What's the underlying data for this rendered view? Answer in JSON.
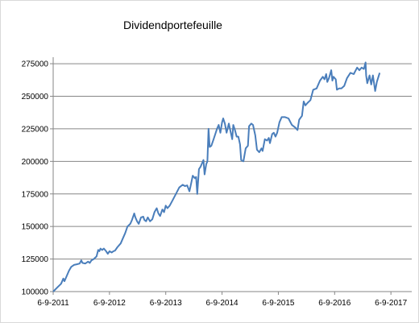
{
  "chart_data": {
    "type": "line",
    "title": "Dividendportefeuille",
    "xlabel": "",
    "ylabel": "",
    "x_tick_labels": [
      "6-9-2011",
      "6-9-2012",
      "6-9-2013",
      "6-9-2014",
      "6-9-2015",
      "6-9-2016",
      "6-9-2017"
    ],
    "x_range_years": [
      2011.68,
      2018.05
    ],
    "y_tick_labels": [
      "100000",
      "125000",
      "150000",
      "175000",
      "200000",
      "225000",
      "250000",
      "275000"
    ],
    "ylim": [
      100000,
      280000
    ],
    "grid": "horizontal",
    "legend": "none",
    "line_color": "#4a7ebb",
    "series": [
      {
        "name": "",
        "points": [
          [
            2011.68,
            100000
          ],
          [
            2011.75,
            103000
          ],
          [
            2011.82,
            106000
          ],
          [
            2011.86,
            110000
          ],
          [
            2011.88,
            108000
          ],
          [
            2011.92,
            112000
          ],
          [
            2011.96,
            116000
          ],
          [
            2012.0,
            119000
          ],
          [
            2012.05,
            120500
          ],
          [
            2012.1,
            121000
          ],
          [
            2012.15,
            121500
          ],
          [
            2012.18,
            124000
          ],
          [
            2012.2,
            122000
          ],
          [
            2012.25,
            121500
          ],
          [
            2012.3,
            123000
          ],
          [
            2012.33,
            122000
          ],
          [
            2012.36,
            124000
          ],
          [
            2012.4,
            125000
          ],
          [
            2012.45,
            127000
          ],
          [
            2012.48,
            132000
          ],
          [
            2012.5,
            131000
          ],
          [
            2012.52,
            133000
          ],
          [
            2012.55,
            132000
          ],
          [
            2012.58,
            133000
          ],
          [
            2012.62,
            131000
          ],
          [
            2012.65,
            129000
          ],
          [
            2012.68,
            131000
          ],
          [
            2012.72,
            130000
          ],
          [
            2012.75,
            131000
          ],
          [
            2012.78,
            131500
          ],
          [
            2012.82,
            134000
          ],
          [
            2012.88,
            137000
          ],
          [
            2012.92,
            141000
          ],
          [
            2012.96,
            145000
          ],
          [
            2013.0,
            150000
          ],
          [
            2013.05,
            152000
          ],
          [
            2013.08,
            155000
          ],
          [
            2013.12,
            160000
          ],
          [
            2013.14,
            157000
          ],
          [
            2013.17,
            154000
          ],
          [
            2013.2,
            152000
          ],
          [
            2013.24,
            157000
          ],
          [
            2013.28,
            157500
          ],
          [
            2013.3,
            155000
          ],
          [
            2013.33,
            154000
          ],
          [
            2013.36,
            157000
          ],
          [
            2013.4,
            154000
          ],
          [
            2013.44,
            155500
          ],
          [
            2013.48,
            161000
          ],
          [
            2013.52,
            164000
          ],
          [
            2013.55,
            160000
          ],
          [
            2013.58,
            158000
          ],
          [
            2013.62,
            163000
          ],
          [
            2013.65,
            161000
          ],
          [
            2013.68,
            166000
          ],
          [
            2013.71,
            164000
          ],
          [
            2013.75,
            166000
          ],
          [
            2013.8,
            170000
          ],
          [
            2013.86,
            175000
          ],
          [
            2013.92,
            180000
          ],
          [
            2013.98,
            182000
          ],
          [
            2014.02,
            181000
          ],
          [
            2014.06,
            181500
          ],
          [
            2014.1,
            177000
          ],
          [
            2014.13,
            183000
          ],
          [
            2014.16,
            189000
          ],
          [
            2014.2,
            187000
          ],
          [
            2014.22,
            188000
          ],
          [
            2014.24,
            175000
          ],
          [
            2014.27,
            194000
          ],
          [
            2014.3,
            196000
          ],
          [
            2014.33,
            199000
          ],
          [
            2014.35,
            201000
          ],
          [
            2014.37,
            190000
          ],
          [
            2014.4,
            198000
          ],
          [
            2014.42,
            200000
          ],
          [
            2014.44,
            225000
          ],
          [
            2014.46,
            211000
          ],
          [
            2014.49,
            212000
          ],
          [
            2014.53,
            217000
          ],
          [
            2014.56,
            221000
          ],
          [
            2014.59,
            225000
          ],
          [
            2014.62,
            228000
          ],
          [
            2014.65,
            222000
          ],
          [
            2014.68,
            230000
          ],
          [
            2014.7,
            233000
          ],
          [
            2014.73,
            229000
          ],
          [
            2014.76,
            222000
          ],
          [
            2014.8,
            229000
          ],
          [
            2014.83,
            223000
          ],
          [
            2014.86,
            217000
          ],
          [
            2014.88,
            228000
          ],
          [
            2014.91,
            224000
          ],
          [
            2014.94,
            219000
          ],
          [
            2014.97,
            219000
          ],
          [
            2015.0,
            213000
          ],
          [
            2015.02,
            201000
          ],
          [
            2015.06,
            200000
          ],
          [
            2015.1,
            210000
          ],
          [
            2015.14,
            212000
          ],
          [
            2015.16,
            227000
          ],
          [
            2015.2,
            229000
          ],
          [
            2015.23,
            228000
          ],
          [
            2015.27,
            220000
          ],
          [
            2015.3,
            209000
          ],
          [
            2015.34,
            207000
          ],
          [
            2015.38,
            210000
          ],
          [
            2015.4,
            208000
          ],
          [
            2015.44,
            217000
          ],
          [
            2015.48,
            216000
          ],
          [
            2015.51,
            218000
          ],
          [
            2015.53,
            214000
          ],
          [
            2015.57,
            221000
          ],
          [
            2015.6,
            222000
          ],
          [
            2015.63,
            219000
          ],
          [
            2015.66,
            222000
          ],
          [
            2015.7,
            230000
          ],
          [
            2015.74,
            234000
          ],
          [
            2015.8,
            234000
          ],
          [
            2015.86,
            233000
          ],
          [
            2015.92,
            228000
          ],
          [
            2015.98,
            226000
          ],
          [
            2016.02,
            224000
          ],
          [
            2016.05,
            232000
          ],
          [
            2016.1,
            235000
          ],
          [
            2016.13,
            246000
          ],
          [
            2016.16,
            243000
          ],
          [
            2016.2,
            245000
          ],
          [
            2016.25,
            247000
          ],
          [
            2016.3,
            255000
          ],
          [
            2016.36,
            256000
          ],
          [
            2016.42,
            262000
          ],
          [
            2016.47,
            265000
          ],
          [
            2016.5,
            263000
          ],
          [
            2016.53,
            267000
          ],
          [
            2016.55,
            261000
          ],
          [
            2016.58,
            264000
          ],
          [
            2016.62,
            270000
          ],
          [
            2016.64,
            262000
          ],
          [
            2016.66,
            265000
          ],
          [
            2016.7,
            263000
          ],
          [
            2016.72,
            255000
          ],
          [
            2016.76,
            256000
          ],
          [
            2016.8,
            256000
          ],
          [
            2016.85,
            258000
          ],
          [
            2016.9,
            264000
          ],
          [
            2016.96,
            268000
          ],
          [
            2017.02,
            267000
          ],
          [
            2017.08,
            272000
          ],
          [
            2017.12,
            270000
          ],
          [
            2017.16,
            272000
          ],
          [
            2017.2,
            271000
          ],
          [
            2017.23,
            276000
          ],
          [
            2017.24,
            266000
          ],
          [
            2017.26,
            260000
          ],
          [
            2017.28,
            263000
          ],
          [
            2017.3,
            266000
          ],
          [
            2017.33,
            259000
          ],
          [
            2017.36,
            266000
          ],
          [
            2017.4,
            254000
          ],
          [
            2017.43,
            261000
          ],
          [
            2017.48,
            268000
          ]
        ]
      }
    ]
  }
}
